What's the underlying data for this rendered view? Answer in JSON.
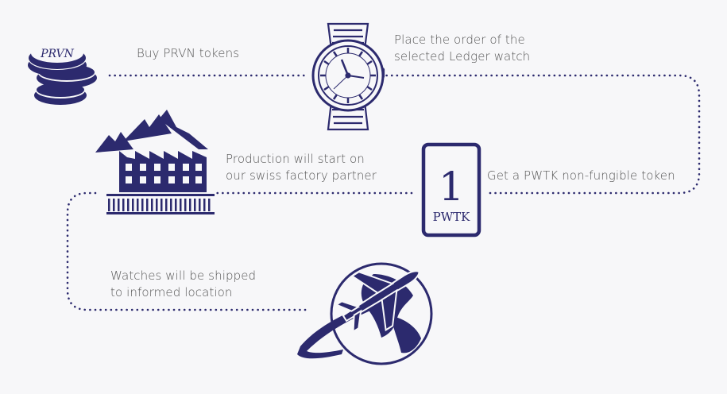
{
  "colors": {
    "navy": "#2c2a6e",
    "text": "#555555",
    "background": "#f7f7f9"
  },
  "steps": [
    {
      "id": "buy",
      "icon": "coin-stack-icon",
      "lines": [
        "Buy PRVN tokens"
      ]
    },
    {
      "id": "order",
      "icon": "watch-icon",
      "lines": [
        "Place the order of the",
        "selected Ledger watch"
      ]
    },
    {
      "id": "nft",
      "icon": "token-card-icon",
      "lines": [
        "Get a PWTK non-fungible token"
      ]
    },
    {
      "id": "production",
      "icon": "factory-icon",
      "lines": [
        "Production will start on",
        "our swiss factory partner"
      ]
    },
    {
      "id": "shipping",
      "icon": "airplane-globe-icon",
      "lines": [
        "Watches will be shipped",
        "to informed location"
      ]
    }
  ],
  "coin_label": "PRVN",
  "token_card": {
    "number": "1",
    "label": "PWTK"
  }
}
